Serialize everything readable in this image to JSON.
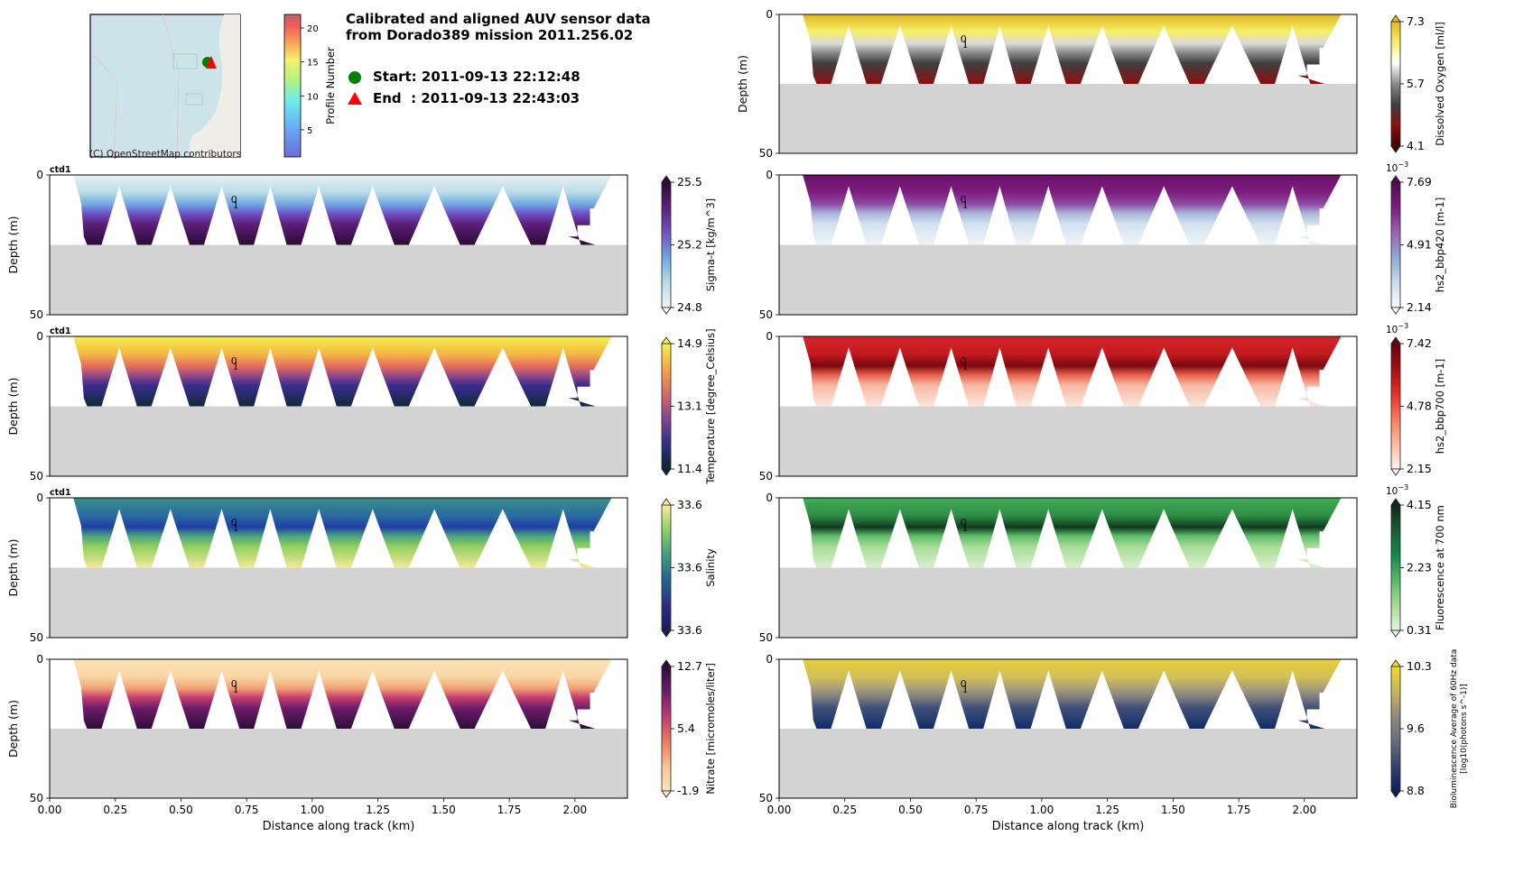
{
  "header": {
    "title_line1": "Calibrated and aligned AUV sensor data",
    "title_line2": "from Dorado389 mission 2011.256.02",
    "start_label": "Start: 2011-09-13 22:12:48",
    "end_label": "End  : 2011-09-13 22:43:03",
    "start_marker_color": "#008000",
    "end_marker_color": "#ff0000"
  },
  "map": {
    "attribution": "(C) OpenStreetMap contributors",
    "water_color": "#cde3ea",
    "land_color": "#eeeee6"
  },
  "profile_colorbar": {
    "label": "Profile Number",
    "ticks": [
      "5",
      "10",
      "15",
      "20"
    ],
    "tick_values": [
      5,
      10,
      15,
      20
    ],
    "range": [
      1,
      22
    ],
    "colormap": "jet-like (alpha)"
  },
  "chart_data": [
    {
      "type": "heatmap",
      "id": "sigma_t",
      "column": "left",
      "row": 1,
      "panel_tag": "ctd1",
      "ylabel": "Depth (m)",
      "xlabel": "",
      "xlim": [
        0,
        2.2
      ],
      "ylim": [
        50,
        0
      ],
      "yticks": [
        "0",
        "50"
      ],
      "colorbar_label": "Sigma-t [kg/m^3]",
      "colorbar_ticks": [
        "25.5",
        "25.2",
        "24.8"
      ],
      "colorbar_range": [
        24.8,
        25.5
      ],
      "colorbar_exponent": "",
      "colors": [
        "#e8f2f4",
        "#b9dce6",
        "#6fa7e3",
        "#6f52c7",
        "#5e1f7a",
        "#2b0a33"
      ],
      "profile_annotation": "0\n1"
    },
    {
      "type": "heatmap",
      "id": "temperature",
      "column": "left",
      "row": 2,
      "panel_tag": "ctd1",
      "ylabel": "Depth (m)",
      "xlabel": "",
      "xlim": [
        0,
        2.2
      ],
      "ylim": [
        50,
        0
      ],
      "yticks": [
        "0",
        "50"
      ],
      "colorbar_label": "Temperature [degree_Celsius]",
      "colorbar_ticks": [
        "14.9",
        "13.1",
        "11.4"
      ],
      "colorbar_range": [
        11.4,
        14.9
      ],
      "colorbar_exponent": "",
      "colors": [
        "#f6ef4d",
        "#f4b844",
        "#e7705e",
        "#9c4a87",
        "#3b2c8e",
        "#0e2a3b"
      ],
      "profile_annotation": "0\n1"
    },
    {
      "type": "heatmap",
      "id": "salinity",
      "column": "left",
      "row": 3,
      "panel_tag": "ctd1",
      "ylabel": "Depth (m)",
      "xlabel": "",
      "xlim": [
        0,
        2.2
      ],
      "ylim": [
        50,
        0
      ],
      "yticks": [
        "0",
        "50"
      ],
      "colorbar_label": "Salinity",
      "colorbar_ticks": [
        "33.6",
        "33.6",
        "33.6"
      ],
      "colorbar_range": [
        33.6,
        33.6
      ],
      "colorbar_exponent": "",
      "colors": [
        "#3a8f8a",
        "#2a6ca0",
        "#1f3ea6",
        "#4aa67c",
        "#93cf5f",
        "#f5e89a"
      ],
      "profile_annotation": "0\n1"
    },
    {
      "type": "heatmap",
      "id": "nitrate",
      "column": "left",
      "row": 4,
      "panel_tag": "",
      "ylabel": "Depth (m)",
      "xlabel": "Distance along track (km)",
      "xlim": [
        0,
        2.2
      ],
      "ylim": [
        50,
        0
      ],
      "yticks": [
        "0",
        "50"
      ],
      "xticks": [
        "0.00",
        "0.25",
        "0.50",
        "0.75",
        "1.00",
        "1.25",
        "1.50",
        "1.75",
        "2.00"
      ],
      "colorbar_label": "Nitrate [micromoles/liter]",
      "colorbar_ticks": [
        "12.7",
        "5.4",
        "-1.9"
      ],
      "colorbar_range": [
        -1.9,
        12.7
      ],
      "colorbar_exponent": "",
      "colors": [
        "#fbe3b4",
        "#f9d7a5",
        "#f1a074",
        "#c63e6e",
        "#6e1d6a",
        "#2c0e3a"
      ],
      "profile_annotation": "0\n1"
    },
    {
      "type": "heatmap",
      "id": "oxygen",
      "column": "right",
      "row": 0,
      "panel_tag": "",
      "ylabel": "Depth (m)",
      "xlabel": "",
      "xlim": [
        0,
        2.2
      ],
      "ylim": [
        50,
        0
      ],
      "yticks": [
        "0",
        "50"
      ],
      "colorbar_label": "Dissolved Oxygen [ml/l]",
      "colorbar_ticks": [
        "7.3",
        "5.7",
        "4.1"
      ],
      "colorbar_range": [
        4.1,
        7.3
      ],
      "colorbar_exponent": "",
      "colors": [
        "#e2b721",
        "#f6ef6a",
        "#d9d9d9",
        "#8a8a8a",
        "#3f3f3f",
        "#8e0e0e"
      ],
      "profile_annotation": "0\n1"
    },
    {
      "type": "heatmap",
      "id": "bbp420",
      "column": "right",
      "row": 1,
      "panel_tag": "",
      "ylabel": "",
      "xlabel": "",
      "xlim": [
        0,
        2.2
      ],
      "ylim": [
        50,
        0
      ],
      "yticks": [
        "0",
        "50"
      ],
      "colorbar_label": "hs2_bbp420 [m-1]",
      "colorbar_ticks": [
        "7.69",
        "4.91",
        "2.14"
      ],
      "colorbar_range": [
        2.14,
        7.69
      ],
      "colorbar_exponent": "10^-3",
      "colors": [
        "#6b0f6b",
        "#7d1d80",
        "#8e4ea6",
        "#a9b6d9",
        "#d2e2f0",
        "#eef4f8"
      ],
      "profile_annotation": "0\n1"
    },
    {
      "type": "heatmap",
      "id": "bbp700",
      "column": "right",
      "row": 2,
      "panel_tag": "",
      "ylabel": "",
      "xlabel": "",
      "xlim": [
        0,
        2.2
      ],
      "ylim": [
        50,
        0
      ],
      "yticks": [
        "0",
        "50"
      ],
      "colorbar_label": "hs2_bbp700 [m-1]",
      "colorbar_ticks": [
        "7.42",
        "4.78",
        "2.15"
      ],
      "colorbar_range": [
        2.15,
        7.42
      ],
      "colorbar_exponent": "10^-3",
      "colors": [
        "#d3262a",
        "#c41b20",
        "#7a0710",
        "#e8604b",
        "#f6b9a3",
        "#fde6dc"
      ],
      "profile_annotation": "0\n1"
    },
    {
      "type": "heatmap",
      "id": "fluorescence",
      "column": "right",
      "row": 3,
      "panel_tag": "",
      "ylabel": "",
      "xlabel": "",
      "xlim": [
        0,
        2.2
      ],
      "ylim": [
        50,
        0
      ],
      "yticks": [
        "0",
        "50"
      ],
      "colorbar_label": "Fluorescence at 700 nm",
      "colorbar_ticks": [
        "4.15",
        "2.23",
        "0.31"
      ],
      "colorbar_range": [
        0.31,
        4.15
      ],
      "colorbar_exponent": "10^-3",
      "colors": [
        "#3fae55",
        "#2f8e46",
        "#103a1e",
        "#5fbf6b",
        "#a9dc97",
        "#daf0cf"
      ],
      "profile_annotation": "0\n1"
    },
    {
      "type": "heatmap",
      "id": "bioluminescence",
      "column": "right",
      "row": 4,
      "panel_tag": "",
      "ylabel": "",
      "xlabel": "Distance along track (km)",
      "xlim": [
        0,
        2.2
      ],
      "ylim": [
        50,
        0
      ],
      "yticks": [
        "0",
        "50"
      ],
      "xticks": [
        "0.00",
        "0.25",
        "0.50",
        "0.75",
        "1.00",
        "1.25",
        "1.50",
        "1.75",
        "2.00"
      ],
      "colorbar_label": "Bioluminescence Average of 60Hz data",
      "colorbar_label_line2": "[log10(photons s^-1)]",
      "colorbar_ticks": [
        "10.3",
        "9.6",
        "8.8"
      ],
      "colorbar_range": [
        8.8,
        10.3
      ],
      "colorbar_exponent": "",
      "colors": [
        "#e6cf3a",
        "#d4c05a",
        "#a89e78",
        "#7d7d7f",
        "#3f4f78",
        "#0f2d6b"
      ],
      "profile_annotation": "0\n1"
    }
  ],
  "track": {
    "yo_peaks_km": [
      0.22,
      0.47,
      0.73,
      0.98,
      1.4,
      1.66,
      1.93
    ],
    "yo_troughs_km": [
      0.17,
      0.36,
      0.56,
      0.75,
      0.93,
      1.12,
      1.34,
      1.59,
      1.86,
      2.05
    ],
    "data_start_km": 0.09,
    "data_end_km": 2.14,
    "top_depth_m": 1,
    "max_depth_m": 25,
    "seafloor_depth_m": 25,
    "inverted_peak_depth_m": 4,
    "seafloor_color": "#d3d3d3"
  }
}
